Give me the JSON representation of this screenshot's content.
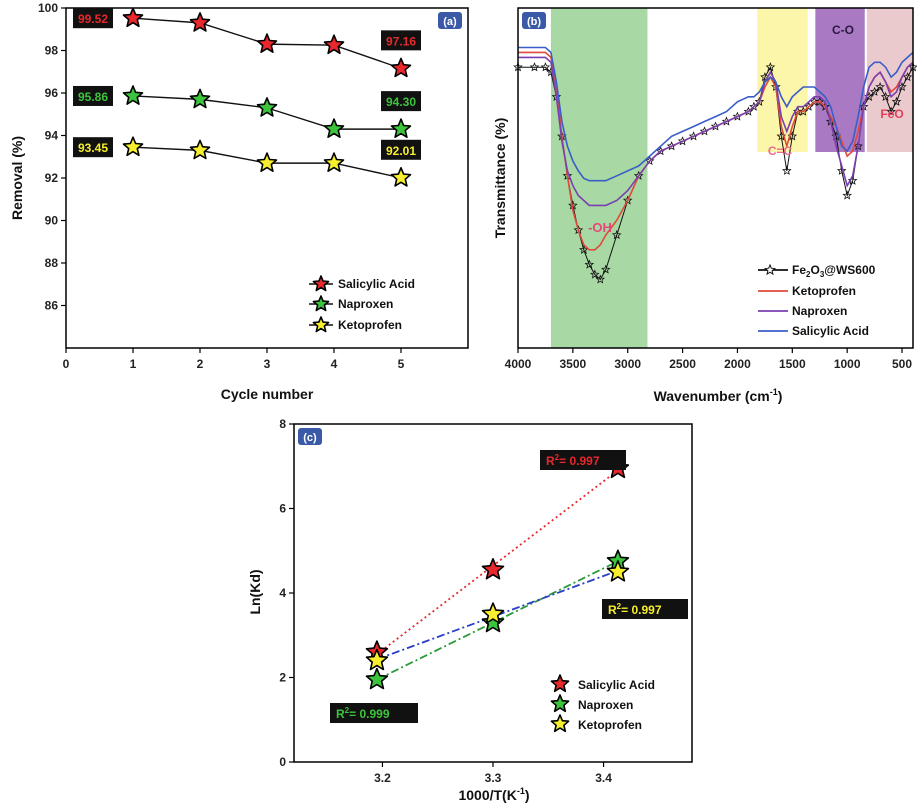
{
  "colors": {
    "salicylic": "#e8282c",
    "naproxen": "#3cc43c",
    "ketoprofen": "#f6ee2e",
    "labelbox": "#111111",
    "axis": "#000000",
    "panel_badge": "#3a5aa8"
  },
  "chart_data": [
    {
      "panel": "(a)",
      "type": "line",
      "xlabel": "Cycle number",
      "ylabel": "Removal (%)",
      "xlim": [
        0,
        6
      ],
      "ylim": [
        84,
        100
      ],
      "xticks": [
        "0",
        "1",
        "2",
        "3",
        "4",
        "5"
      ],
      "yticks": [
        "86",
        "88",
        "90",
        "92",
        "94",
        "96",
        "98",
        "100"
      ],
      "x": [
        1,
        2,
        3,
        4,
        5
      ],
      "series": [
        {
          "name": "Salicylic Acid",
          "values": [
            99.52,
            99.3,
            98.3,
            98.25,
            97.16
          ]
        },
        {
          "name": "Naproxen",
          "values": [
            95.86,
            95.7,
            95.3,
            94.3,
            94.3
          ]
        },
        {
          "name": "Ketoprofen",
          "values": [
            93.45,
            93.3,
            92.7,
            92.7,
            92.01
          ]
        }
      ],
      "data_labels": [
        {
          "series": 0,
          "text": "99.52",
          "x": 1
        },
        {
          "series": 0,
          "text": "97.16",
          "x": 5
        },
        {
          "series": 1,
          "text": "95.86",
          "x": 1
        },
        {
          "series": 1,
          "text": "94.30",
          "x": 5
        },
        {
          "series": 2,
          "text": "93.45",
          "x": 1
        },
        {
          "series": 2,
          "text": "92.01",
          "x": 5
        }
      ],
      "legend": "bottom-right"
    },
    {
      "panel": "(b)",
      "type": "line",
      "xlabel": "Wavenumber (cm⁻¹)",
      "ylabel": "Transmittance (%)",
      "xlim": [
        4000,
        400
      ],
      "xticks": [
        "4000",
        "3500",
        "3000",
        "2500",
        "2000",
        "1500",
        "1000",
        "500"
      ],
      "bands": [
        {
          "label": "-OH",
          "from": 3700,
          "to": 2820,
          "color": "#9fd49a"
        },
        {
          "label": "C=C",
          "from": 1820,
          "to": 1360,
          "color": "#fbf5a0"
        },
        {
          "label": "C-O",
          "from": 1290,
          "to": 840,
          "color": "#9a63b8"
        },
        {
          "label": "FeO",
          "from": 820,
          "to": 400,
          "color": "#e8c4c8"
        }
      ],
      "series": [
        {
          "name": "Fe₂O₃@WS600",
          "color": "#111111",
          "x": [
            4000,
            3850,
            3750,
            3700,
            3650,
            3600,
            3550,
            3500,
            3450,
            3400,
            3350,
            3300,
            3250,
            3200,
            3100,
            3000,
            2900,
            2800,
            2700,
            2600,
            2500,
            2400,
            2300,
            2200,
            2100,
            2000,
            1900,
            1850,
            1800,
            1750,
            1700,
            1650,
            1600,
            1550,
            1500,
            1450,
            1400,
            1350,
            1300,
            1250,
            1200,
            1150,
            1100,
            1050,
            1000,
            950,
            900,
            850,
            800,
            750,
            700,
            650,
            600,
            550,
            500,
            450,
            400
          ],
          "values": [
            88,
            88,
            88,
            87,
            82,
            74,
            66,
            60,
            55,
            51,
            48,
            46,
            45,
            47,
            54,
            61,
            66,
            69,
            71,
            72,
            73,
            74,
            75,
            76,
            77,
            78,
            79,
            80,
            81,
            86,
            88,
            84,
            74,
            67,
            74,
            79,
            79,
            80,
            81,
            81,
            80,
            77,
            74,
            67,
            62,
            65,
            72,
            80,
            82,
            83,
            84,
            82,
            79,
            81,
            84,
            86,
            88
          ]
        },
        {
          "name": "Ketoprofen",
          "color": "#e04a3a",
          "x": [
            4000,
            3850,
            3750,
            3700,
            3650,
            3600,
            3550,
            3500,
            3450,
            3400,
            3350,
            3300,
            3250,
            3200,
            3100,
            3000,
            2900,
            2800,
            2700,
            2600,
            2500,
            2400,
            2300,
            2200,
            2100,
            2000,
            1900,
            1850,
            1800,
            1750,
            1700,
            1650,
            1600,
            1550,
            1500,
            1450,
            1400,
            1350,
            1300,
            1250,
            1200,
            1150,
            1100,
            1050,
            1000,
            950,
            900,
            850,
            800,
            750,
            700,
            650,
            600,
            550,
            500,
            450,
            400
          ],
          "values": [
            91,
            91,
            91,
            90,
            84,
            74,
            66,
            59,
            55,
            52,
            51,
            51,
            52,
            54,
            57,
            61,
            66,
            69,
            71,
            72,
            73,
            74,
            75,
            76,
            77,
            78,
            79,
            80,
            81,
            84,
            86,
            84,
            76,
            72,
            76,
            79,
            79,
            80,
            81,
            81,
            80,
            78,
            76,
            73,
            70,
            71,
            75,
            80,
            84,
            86,
            87,
            85,
            83,
            84,
            86,
            88,
            89
          ]
        },
        {
          "name": "Naproxen",
          "color": "#7a3fb0",
          "x": [
            4000,
            3850,
            3750,
            3700,
            3650,
            3600,
            3550,
            3500,
            3450,
            3400,
            3350,
            3300,
            3250,
            3200,
            3100,
            3000,
            2900,
            2800,
            2700,
            2600,
            2500,
            2400,
            2300,
            2200,
            2100,
            2000,
            1900,
            1850,
            1800,
            1750,
            1700,
            1650,
            1600,
            1550,
            1500,
            1450,
            1400,
            1350,
            1300,
            1250,
            1200,
            1150,
            1100,
            1050,
            1000,
            950,
            900,
            850,
            800,
            750,
            700,
            650,
            600,
            550,
            500,
            450,
            400
          ],
          "values": [
            90,
            90,
            90,
            89,
            82,
            73,
            67,
            64,
            62,
            61,
            60,
            60,
            60,
            60,
            61,
            63,
            66,
            69,
            71,
            72,
            73,
            74,
            75,
            76,
            77,
            78,
            79,
            80,
            81,
            85,
            87,
            85,
            78,
            75,
            78,
            80,
            80,
            81,
            82,
            82,
            81,
            77,
            72,
            68,
            64,
            66,
            72,
            80,
            84,
            86,
            87,
            85,
            82,
            83,
            86,
            88,
            89
          ]
        },
        {
          "name": "Salicylic Acid",
          "color": "#3a5ec8",
          "x": [
            4000,
            3850,
            3750,
            3700,
            3650,
            3600,
            3550,
            3500,
            3450,
            3400,
            3350,
            3300,
            3250,
            3200,
            3100,
            3000,
            2900,
            2800,
            2700,
            2600,
            2500,
            2400,
            2300,
            2200,
            2100,
            2000,
            1900,
            1850,
            1800,
            1750,
            1700,
            1650,
            1600,
            1550,
            1500,
            1450,
            1400,
            1350,
            1300,
            1250,
            1200,
            1150,
            1100,
            1050,
            1000,
            950,
            900,
            850,
            800,
            750,
            700,
            650,
            600,
            550,
            500,
            450,
            400
          ],
          "values": [
            92,
            92,
            92,
            91,
            85,
            77,
            72,
            69,
            67,
            65.5,
            65,
            65,
            65,
            65,
            66,
            67,
            68,
            70,
            72,
            74,
            75,
            76,
            77,
            78,
            79,
            81,
            82,
            82,
            83,
            85,
            86,
            85,
            82,
            80,
            82,
            83,
            84,
            84,
            84,
            83,
            82,
            80,
            76,
            72,
            71,
            73,
            78,
            84,
            88,
            89,
            89,
            88,
            86,
            87,
            89,
            90,
            91
          ]
        }
      ],
      "legend": "bottom-right"
    },
    {
      "panel": "(c)",
      "type": "scatter",
      "xlabel": "1000/T(K⁻¹)",
      "ylabel": "Ln(Kd)",
      "xlim": [
        3.12,
        3.48
      ],
      "ylim": [
        0,
        8
      ],
      "xticks": [
        "3.2",
        "3.3",
        "3.4"
      ],
      "yticks": [
        "0",
        "2",
        "4",
        "6",
        "8"
      ],
      "x": [
        3.195,
        3.3,
        3.413
      ],
      "series": [
        {
          "name": "Salicylic Acid",
          "values": [
            2.6,
            4.55,
            6.95
          ],
          "fit_color": "#e8282c"
        },
        {
          "name": "Naproxen",
          "values": [
            1.95,
            3.3,
            4.75
          ],
          "fit_color": "#2a9a3a"
        },
        {
          "name": "Ketoprofen",
          "values": [
            2.4,
            3.5,
            4.5
          ],
          "fit_color": "#2a3fc8"
        }
      ],
      "annotations": [
        {
          "text": "R²= 0.997",
          "series": 0
        },
        {
          "text": "R²= 0.997",
          "series": 2
        },
        {
          "text": "R²= 0.999",
          "series": 1
        }
      ],
      "legend": "bottom-right"
    }
  ],
  "ui": {
    "a": {
      "badge": "(a)",
      "ylabel": "Removal (%)",
      "xlabel": "Cycle number",
      "legend": [
        "Salicylic Acid",
        "Naproxen",
        "Ketoprofen"
      ]
    },
    "b": {
      "badge": "(b)",
      "ylabel": "Transmittance (%)",
      "xlabel_main": "Wavenumber (cm",
      "xlabel_sup": "-1",
      "xlabel_end": ")",
      "band_oh": "-OH",
      "band_cc": "C=C",
      "band_co": "C-O",
      "band_feo": "FeO",
      "legend": {
        "l0a": "Fe",
        "l0b": "2",
        "l0c": "O",
        "l0d": "3",
        "l0e": "@WS600",
        "l1": "Ketoprofen",
        "l2": "Naproxen",
        "l3": "Salicylic Acid"
      }
    },
    "c": {
      "badge": "(c)",
      "ylabel": "Ln(Kd)",
      "xlabel_main": "1000/T(K",
      "xlabel_sup": "-1",
      "xlabel_end": ")",
      "legend": [
        "Salicylic Acid",
        "Naproxen",
        "Ketoprofen"
      ],
      "r2_sal_a": "R",
      "r2_sup": "2",
      "r2_sal_b": "= 0.997",
      "r2_ket_a": "R",
      "r2_ket_b": "= 0.997",
      "r2_nap_a": "R",
      "r2_nap_b": "= 0.999"
    }
  }
}
